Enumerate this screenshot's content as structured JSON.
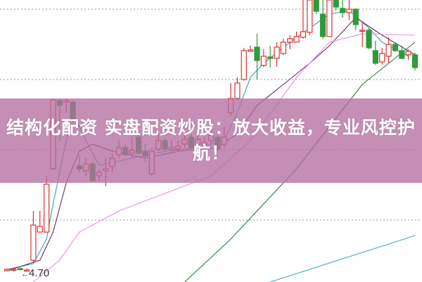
{
  "banner": {
    "title": "结构化配资 实盘配资炒股：放大收益，专业风控护航！"
  },
  "chart_data": {
    "type": "candlestick",
    "price_label": "4.70",
    "ylim": [
      4.645,
      6.65
    ],
    "grid": "horizontal-dotted",
    "gridlines": [
      6.585,
      6.085,
      5.585,
      5.085
    ],
    "colors": {
      "up": "#e03030",
      "down": "#2e9a3a",
      "ma5": "#3aa0b0",
      "ma10": "#6a2a60",
      "ma20": "#e890e0",
      "ma60": "#2e7a3a",
      "ma120": "#40a8c0",
      "grid": "#999999"
    },
    "candles": [
      [
        4.725,
        4.735,
        4.74,
        4.72
      ],
      [
        4.73,
        4.735,
        4.745,
        4.72
      ],
      [
        4.74,
        4.735,
        4.75,
        4.73
      ],
      [
        4.725,
        4.73,
        4.74,
        4.72
      ],
      [
        4.8,
        5.05,
        5.15,
        4.79
      ],
      [
        5.0,
        5.04,
        5.15,
        5.0
      ],
      [
        5.0,
        5.34,
        5.4,
        5.0
      ],
      [
        5.45,
        5.94,
        5.95,
        5.45
      ],
      [
        5.935,
        5.9,
        5.95,
        5.65
      ],
      [
        5.925,
        5.935,
        5.95,
        5.85
      ],
      [
        5.925,
        5.8,
        5.935,
        5.775
      ],
      [
        5.47,
        5.45,
        5.545,
        5.425
      ],
      [
        5.435,
        5.485,
        5.525,
        5.4
      ],
      [
        5.485,
        5.365,
        5.5,
        5.36
      ],
      [
        5.4,
        5.425,
        5.45,
        5.36
      ],
      [
        5.435,
        5.45,
        5.525,
        5.325
      ],
      [
        5.465,
        5.525,
        5.56,
        5.425
      ],
      [
        5.55,
        5.6,
        5.65,
        5.525
      ],
      [
        5.6,
        5.55,
        5.625,
        5.54
      ],
      [
        5.56,
        5.58,
        5.675,
        5.525
      ],
      [
        5.675,
        5.56,
        5.7,
        5.55
      ],
      [
        5.575,
        5.54,
        5.625,
        5.5
      ],
      [
        5.415,
        5.575,
        5.6,
        5.4
      ],
      [
        5.59,
        5.65,
        5.7,
        5.575
      ],
      [
        5.65,
        5.59,
        5.675,
        5.575
      ],
      [
        5.585,
        5.6,
        5.65,
        5.575
      ],
      [
        5.59,
        5.61,
        5.65,
        5.575
      ],
      [
        5.625,
        5.66,
        5.71,
        5.6
      ],
      [
        5.675,
        5.6,
        5.7,
        5.59
      ],
      [
        5.625,
        5.66,
        5.69,
        5.61
      ],
      [
        5.615,
        5.635,
        5.675,
        5.59
      ],
      [
        5.65,
        5.69,
        5.725,
        5.625
      ],
      [
        5.675,
        5.59,
        5.725,
        5.575
      ],
      [
        5.625,
        5.675,
        5.75,
        5.6
      ],
      [
        5.85,
        5.95,
        6.06,
        5.825
      ],
      [
        5.95,
        6.06,
        6.1,
        5.94
      ],
      [
        6.085,
        6.29,
        6.31,
        6.075
      ],
      [
        6.285,
        6.295,
        6.325,
        6.285
      ],
      [
        6.315,
        6.22,
        6.41,
        6.085
      ],
      [
        6.185,
        6.25,
        6.3,
        6.175
      ],
      [
        6.245,
        6.235,
        6.325,
        6.17
      ],
      [
        6.235,
        6.315,
        6.35,
        6.175
      ],
      [
        6.27,
        6.35,
        6.375,
        6.26
      ],
      [
        6.35,
        6.375,
        6.4,
        6.3
      ],
      [
        6.35,
        6.39,
        6.425,
        6.35
      ],
      [
        6.385,
        6.425,
        6.65,
        6.375
      ],
      [
        6.42,
        6.65,
        6.65,
        6.4
      ],
      [
        6.65,
        6.57,
        6.65,
        6.55
      ],
      [
        6.55,
        6.39,
        6.65,
        6.375
      ],
      [
        6.39,
        6.65,
        6.65,
        6.39
      ],
      [
        6.65,
        6.6,
        6.65,
        6.575
      ],
      [
        6.59,
        6.56,
        6.65,
        6.525
      ],
      [
        6.56,
        6.585,
        6.65,
        6.51
      ],
      [
        6.585,
        6.475,
        6.59,
        6.435
      ],
      [
        6.43,
        6.435,
        6.5,
        6.315
      ],
      [
        6.435,
        6.31,
        6.45,
        6.3
      ],
      [
        6.29,
        6.2,
        6.36,
        6.19
      ],
      [
        6.21,
        6.27,
        6.31,
        6.19
      ],
      [
        6.25,
        6.335,
        6.385,
        6.2
      ],
      [
        6.335,
        6.29,
        6.35,
        6.28
      ],
      [
        6.29,
        6.235,
        6.325,
        6.23
      ],
      [
        6.26,
        6.285,
        6.3,
        6.225
      ],
      [
        6.26,
        6.17,
        6.275,
        6.15
      ]
    ],
    "ma_lines": [
      {
        "key": "ma5",
        "points": [
          [
            1,
            4.735
          ],
          [
            5,
            4.775
          ],
          [
            7,
            4.95
          ],
          [
            8,
            5.2
          ],
          [
            10,
            5.65
          ],
          [
            11,
            5.85
          ],
          [
            13,
            5.65
          ],
          [
            15,
            5.475
          ],
          [
            20,
            5.525
          ],
          [
            25,
            5.575
          ],
          [
            30,
            5.6
          ],
          [
            34,
            5.65
          ],
          [
            36,
            5.85
          ],
          [
            38,
            6.1
          ],
          [
            40,
            6.2
          ],
          [
            44,
            6.35
          ],
          [
            47,
            6.45
          ],
          [
            50,
            6.55
          ],
          [
            53,
            6.575
          ],
          [
            56,
            6.45
          ],
          [
            58,
            6.35
          ],
          [
            62,
            6.25
          ]
        ]
      },
      {
        "key": "ma10",
        "points": [
          [
            1,
            4.725
          ],
          [
            6,
            4.8
          ],
          [
            8,
            5.0
          ],
          [
            10,
            5.35
          ],
          [
            12,
            5.575
          ],
          [
            14,
            5.625
          ],
          [
            17,
            5.575
          ],
          [
            22,
            5.525
          ],
          [
            27,
            5.575
          ],
          [
            33,
            5.6
          ],
          [
            36,
            5.7
          ],
          [
            39,
            5.9
          ],
          [
            43,
            6.05
          ],
          [
            47,
            6.2
          ],
          [
            50,
            6.325
          ],
          [
            54,
            6.525
          ],
          [
            58,
            6.4
          ],
          [
            63,
            6.26
          ]
        ]
      },
      {
        "key": "ma20",
        "points": [
          [
            5,
            4.645
          ],
          [
            9,
            4.8
          ],
          [
            12,
            5.0
          ],
          [
            18,
            5.15
          ],
          [
            25,
            5.275
          ],
          [
            32,
            5.4
          ],
          [
            38,
            5.65
          ],
          [
            45,
            6.1
          ],
          [
            50,
            6.35
          ],
          [
            55,
            6.41
          ],
          [
            63,
            6.4
          ]
        ]
      },
      {
        "key": "ma60",
        "points": [
          [
            28,
            4.645
          ],
          [
            35,
            4.95
          ],
          [
            45,
            5.45
          ],
          [
            55,
            6.05
          ],
          [
            63,
            6.35
          ]
        ]
      },
      {
        "key": "ma120",
        "points": [
          [
            41,
            4.645
          ],
          [
            63,
            4.975
          ]
        ]
      }
    ]
  }
}
